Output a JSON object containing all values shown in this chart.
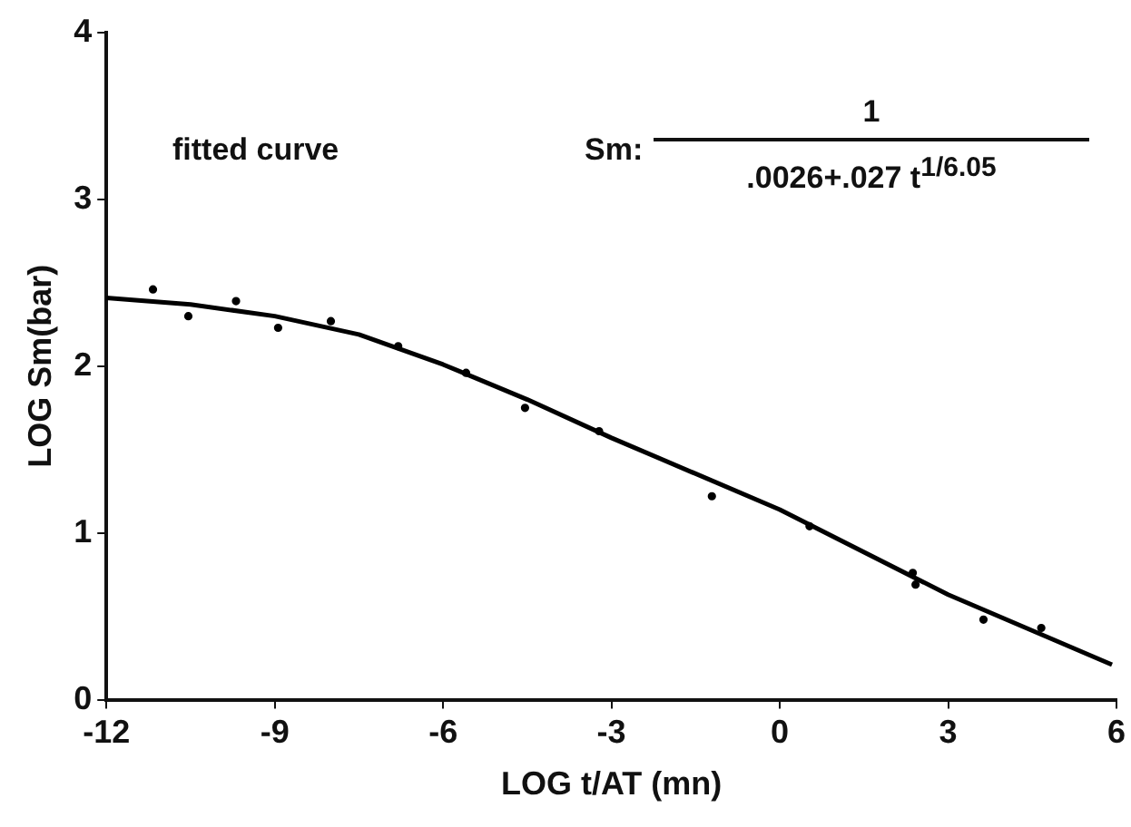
{
  "chart_data": {
    "type": "scatter",
    "xlabel": "LOG t/AT (mn)",
    "ylabel": "LOG Sm(bar)",
    "annotations": [
      "fitted curve",
      "Sm:",
      "1",
      ".0026+.027 t$^{1/6.05}$"
    ],
    "xlim": [
      -12,
      6
    ],
    "xticks": [
      -12,
      -9,
      -6,
      -3,
      0,
      3,
      6
    ],
    "ylim": [
      0,
      4
    ],
    "yticks": [
      0,
      1,
      2,
      3,
      4
    ],
    "grid": false,
    "legend": false,
    "series": [
      {
        "marker": "circle",
        "color": "#000000",
        "x": [
          -11.17,
          -10.54,
          -9.69,
          -8.94,
          -8.0,
          -6.8,
          -5.59,
          -4.54,
          -3.22,
          -1.21,
          0.53,
          2.37,
          2.42,
          3.63,
          4.66
        ],
        "values": [
          2.46,
          2.3,
          2.39,
          2.23,
          2.27,
          2.12,
          1.96,
          1.75,
          1.61,
          1.22,
          1.04,
          0.76,
          0.69,
          0.48,
          0.43
        ]
      },
      {
        "type": "line",
        "marker": "none",
        "line_style": "solid",
        "color": "#000000",
        "x": [
          -12,
          -10.5,
          -9,
          -7.5,
          -6,
          -4.5,
          -3,
          0,
          3,
          5.92
        ],
        "values": [
          2.41,
          2.37,
          2.3,
          2.19,
          2.01,
          1.8,
          1.57,
          1.14,
          0.63,
          0.21
        ]
      }
    ]
  }
}
